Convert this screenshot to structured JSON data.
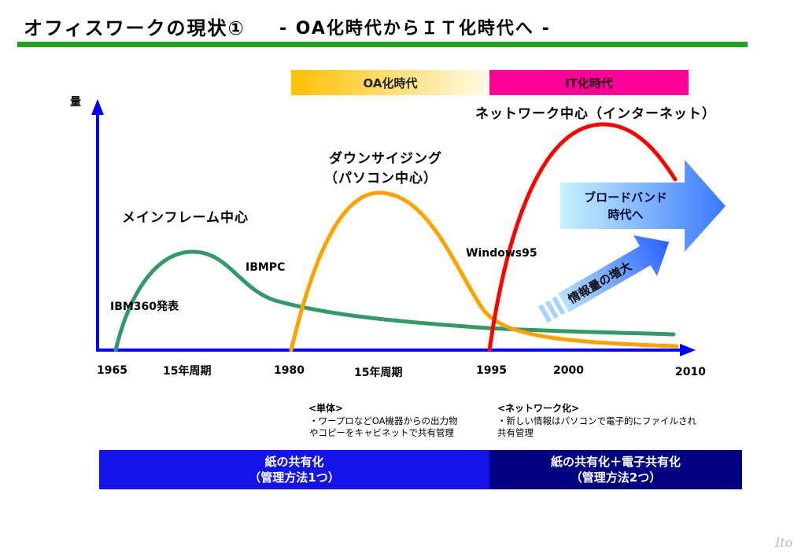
{
  "title": {
    "main": "オフィスワークの現状①",
    "sub": "- OA化時代からＩＴ化時代へ -"
  },
  "eras": {
    "oa": "OA化時代",
    "it": "IT化時代"
  },
  "axis": {
    "y_label": "量",
    "x_ticks": [
      "1965",
      "1980",
      "1995",
      "2000",
      "2010"
    ],
    "periods": [
      "15年周期",
      "15年周期"
    ]
  },
  "annotations": {
    "ibm360": "IBM360発表",
    "mainframe": "メインフレーム中心",
    "ibmpc": "IBMPC",
    "downsizing": "ダウンサイジング",
    "pc_centric": "（パソコン中心）",
    "windows95": "Windows95",
    "network_centric": "ネットワーク中心（インターネット）",
    "broadband_line1": "ブロードバンド",
    "broadband_line2": "時代へ",
    "info_growth": "情報量の増大"
  },
  "notes": [
    {
      "heading": "<単体>",
      "lines": [
        "・ワープロなどOA機器からの出力物",
        "やコピーをキャビネットで共有管理"
      ]
    },
    {
      "heading": "<ネットワーク化>",
      "lines": [
        "・新しい情報はパソコンで電子的にファイルされ",
        "共有管理"
      ]
    }
  ],
  "summary": [
    {
      "line1": "紙の共有化",
      "line2": "（管理方法1つ）"
    },
    {
      "line1": "紙の共有化＋電子共有化",
      "line2": "（管理方法2つ）"
    }
  ],
  "footer": {
    "logo": "Ito"
  },
  "colors": {
    "title_rule": "#22a022",
    "axis": "#0000ff",
    "mainframe_curve": "#339966",
    "pc_curve": "#ffa200",
    "network_curve": "#ff0000",
    "era_oa_start": "#ffc000",
    "era_oa_end": "#fffbe6",
    "era_it": "#ff0099",
    "broadband_start": "#c9f3ff",
    "broadband_end": "#3b78ff",
    "growth_start": "#b9e0ff",
    "growth_end": "#2860ff",
    "box_left": "#1414e8",
    "box_right": "#000080"
  }
}
